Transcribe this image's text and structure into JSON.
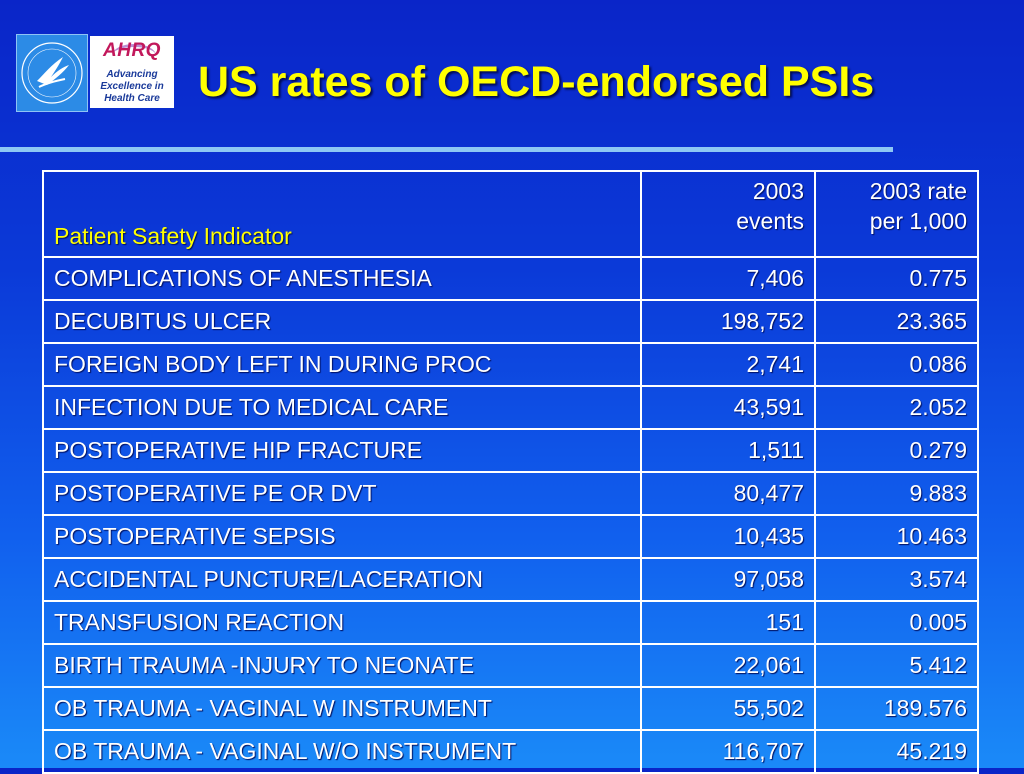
{
  "slide": {
    "title": "US rates of OECD-endorsed PSIs",
    "logos": {
      "hhs": {
        "icon": "hhs-eagle-seal-icon",
        "color": "#2c8be6"
      },
      "ahrq": {
        "brand": "AHRQ",
        "tagline": [
          "Advancing",
          "Excellence in",
          "Health Care"
        ]
      }
    },
    "accent_colors": {
      "title": "#ffff00",
      "rule": "#8ec8f4",
      "background": "#0b3ad8"
    }
  },
  "table": {
    "headers": {
      "indicator": "Patient Safety Indicator",
      "events": [
        "2003",
        "events"
      ],
      "rate": [
        "2003 rate",
        "per 1,000"
      ]
    },
    "rows": [
      {
        "name": "COMPLICATIONS OF ANESTHESIA",
        "events": "7,406",
        "rate": "0.775"
      },
      {
        "name": "DECUBITUS ULCER",
        "events": "198,752",
        "rate": "23.365"
      },
      {
        "name": "FOREIGN BODY LEFT IN DURING PROC",
        "events": "2,741",
        "rate": "0.086"
      },
      {
        "name": "INFECTION DUE TO MEDICAL CARE",
        "events": "43,591",
        "rate": "2.052"
      },
      {
        "name": "POSTOPERATIVE HIP FRACTURE",
        "events": "1,511",
        "rate": "0.279"
      },
      {
        "name": "POSTOPERATIVE PE OR DVT",
        "events": "80,477",
        "rate": "9.883"
      },
      {
        "name": "POSTOPERATIVE SEPSIS",
        "events": "10,435",
        "rate": "10.463"
      },
      {
        "name": "ACCIDENTAL PUNCTURE/LACERATION",
        "events": "97,058",
        "rate": "3.574"
      },
      {
        "name": "TRANSFUSION REACTION",
        "events": "151",
        "rate": "0.005"
      },
      {
        "name": "BIRTH TRAUMA -INJURY TO NEONATE",
        "events": "22,061",
        "rate": "5.412"
      },
      {
        "name": "OB TRAUMA - VAGINAL W INSTRUMENT",
        "events": "55,502",
        "rate": "189.576"
      },
      {
        "name": "OB TRAUMA - VAGINAL W/O INSTRUMENT",
        "events": "116,707",
        "rate": "45.219"
      }
    ]
  }
}
